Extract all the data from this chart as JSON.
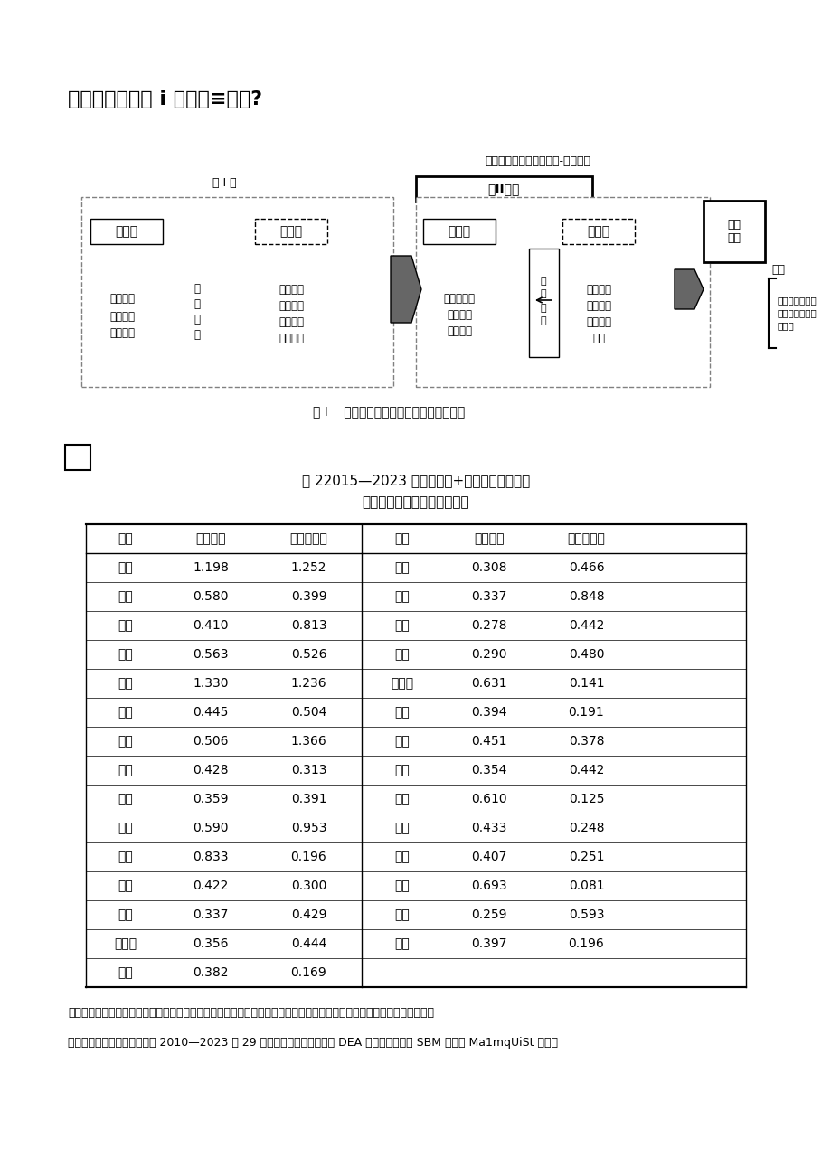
{
  "title": "数字化何以新我 i 脱收征≡库吗?",
  "figure_caption": "图 I    数字化技术赋能下的企业一税务框架",
  "diagram_label_top": "数字化技术赋能卜的企业-税务框架",
  "stage1_label": "第 I 阶",
  "stage2_label": "第II阶段",
  "table_title1": "表 22015—2023 年数字经济+数字政府背景下的",
  "table_title2": "各地区静态税收征管效率均伯",
  "col_headers": [
    "省份",
    "传统效率",
    "双数字效率",
    "省份",
    "传统效率",
    "双数字效率"
  ],
  "left_data": [
    [
      "北京",
      "1.198",
      "1.252"
    ],
    [
      "天津",
      "0.580",
      "0.399"
    ],
    [
      "河北",
      "0.410",
      "0.813"
    ],
    [
      "辽宁",
      "0.563",
      "0.526"
    ],
    [
      "上海",
      "1.330",
      "1.236"
    ],
    [
      "江苏",
      "0.445",
      "0.504"
    ],
    [
      "浙江",
      "0.506",
      "1.366"
    ],
    [
      "福建",
      "0.428",
      "0.313"
    ],
    [
      "山东",
      "0.359",
      "0.391"
    ],
    [
      "广东",
      "0.590",
      "0.953"
    ],
    [
      "海南",
      "0.833",
      "0.196"
    ],
    [
      "山西",
      "0.422",
      "0.300"
    ],
    [
      "吉林",
      "0.337",
      "0.429"
    ],
    [
      "黑龙江",
      "0.356",
      "0.444"
    ],
    [
      "青海",
      "0.382",
      "0.169"
    ]
  ],
  "right_data": [
    [
      "安徽",
      "0.308",
      "0.466"
    ],
    [
      "江西",
      "0.337",
      "0.848"
    ],
    [
      "河南",
      "0.278",
      "0.442"
    ],
    [
      "湖北",
      "0.290",
      "0.480"
    ],
    [
      "内蒙古",
      "0.631",
      "0.141"
    ],
    [
      "广西",
      "0.394",
      "0.191"
    ],
    [
      "用庆",
      "0.451",
      "0.378"
    ],
    [
      "四川",
      "0.354",
      "0.442"
    ],
    [
      "贵州",
      "0.610",
      "0.125"
    ],
    [
      "云南",
      "0.433",
      "0.248"
    ],
    [
      "陕西",
      "0.407",
      "0.251"
    ],
    [
      "甘肃",
      "0.693",
      "0.081"
    ],
    [
      "湖南",
      "0.259",
      "0.593"
    ],
    [
      "宁夏",
      "0.397",
      "0.196"
    ],
    [
      "",
      "",
      ""
    ]
  ],
  "abstract_text1": "［摘要］数字化技术的发展不仅赋能传统产业加快数字化转型，而且赋能政务部门从传统治理向数字治理转变，进而影响了",
  "abstract_text2": "税收征管效率。文章选取我国 2010—2023 年 29 个省份的面板数据，运用 DEA 方法中的超效率 SBM 模型和 Ma1mqUiSt 指数对",
  "page_bg": "#ffffff"
}
